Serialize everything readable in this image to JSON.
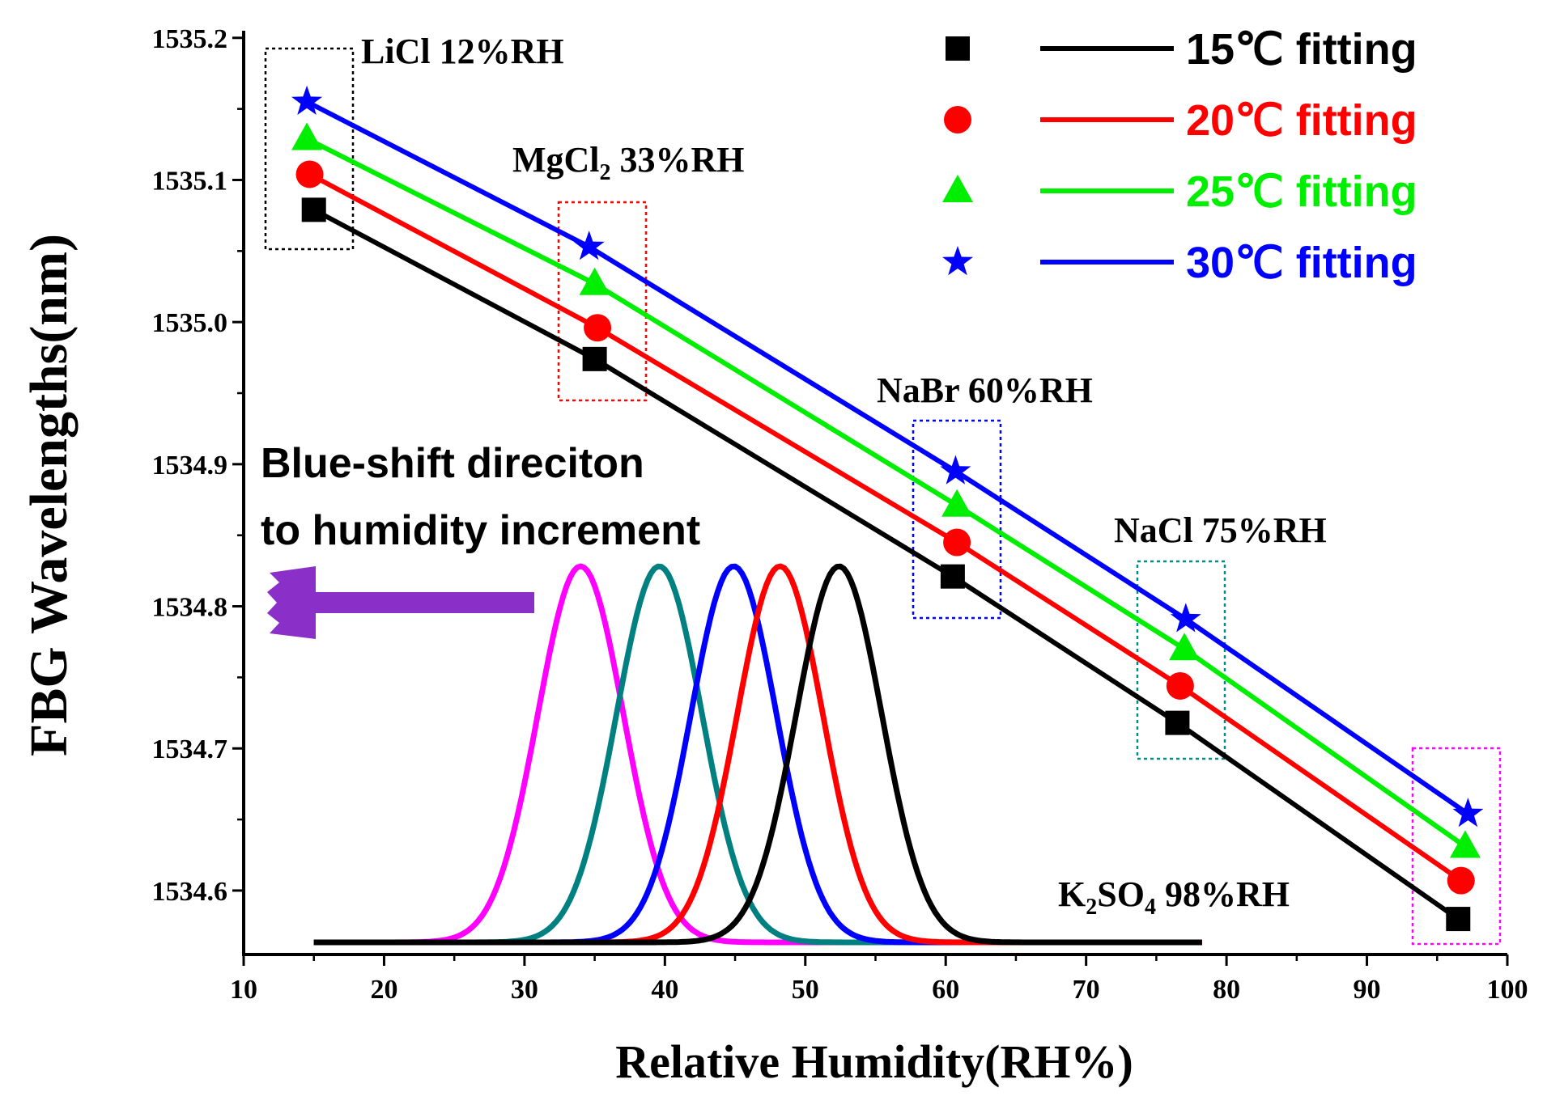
{
  "chart_data": {
    "type": "line",
    "xlabel": "Relative Humidity(RH%)",
    "ylabel": "FBG Wavelengths(nm)",
    "xlim": [
      10,
      100
    ],
    "ylim": [
      1534.555,
      1535.205
    ],
    "x_ticks": [
      10,
      20,
      30,
      40,
      50,
      60,
      70,
      80,
      90,
      100
    ],
    "y_ticks": [
      "1534.6",
      "1534.7",
      "1534.8",
      "1534.9",
      "1535.0",
      "1535.1",
      "1535.2"
    ],
    "series": [
      {
        "name": "15℃",
        "label": "fitting",
        "color": "#000000",
        "marker": "square",
        "x": [
          15,
          35,
          60.5,
          76.5,
          96.5
        ],
        "y": [
          1535.079,
          1534.974,
          1534.821,
          1534.718,
          1534.58
        ]
      },
      {
        "name": "20℃",
        "label": "fitting",
        "color": "#ff0000",
        "marker": "circle",
        "x": [
          14.7,
          35.2,
          60.8,
          76.7,
          96.7
        ],
        "y": [
          1535.104,
          1534.996,
          1534.845,
          1534.744,
          1534.607
        ]
      },
      {
        "name": "25℃",
        "label": "fitting",
        "color": "#00ee00",
        "marker": "triangle",
        "x": [
          14.5,
          35,
          60.8,
          77,
          97
        ],
        "y": [
          1535.129,
          1535.027,
          1534.871,
          1534.77,
          1534.631
        ]
      },
      {
        "name": "30℃",
        "label": "fitting",
        "color": "#0000ff",
        "marker": "star",
        "x": [
          14.5,
          34.6,
          60.7,
          77.1,
          97.2
        ],
        "y": [
          1535.155,
          1535.053,
          1534.895,
          1534.791,
          1534.654
        ]
      }
    ],
    "salt_labels": [
      {
        "salt": "LiCl  12%RH",
        "color": "#000000"
      },
      {
        "salt": "MgCl",
        "sub": "2",
        "rest": " 33%RH",
        "color": "#ff0000"
      },
      {
        "salt": "NaBr 60%RH",
        "color": "#0000ff"
      },
      {
        "salt": "NaCl 75%RH",
        "color": "#008b8b"
      },
      {
        "salt": "K",
        "sub": "2",
        "mid": "SO",
        "sub2": "4",
        "rest": " 98%RH",
        "color": "#ff00ff"
      }
    ],
    "spectra_peaks": [
      {
        "center": 34.0,
        "color": "#ff00ff"
      },
      {
        "center": 39.6,
        "color": "#008080"
      },
      {
        "center": 44.9,
        "color": "#0000ff"
      },
      {
        "center": 48.2,
        "color": "#ff0000"
      },
      {
        "center": 52.4,
        "color": "#000000"
      }
    ],
    "annotation_lines": [
      "Blue-shift direciton",
      "to humidity increment"
    ],
    "arrow_color": "#8b2fc9"
  }
}
